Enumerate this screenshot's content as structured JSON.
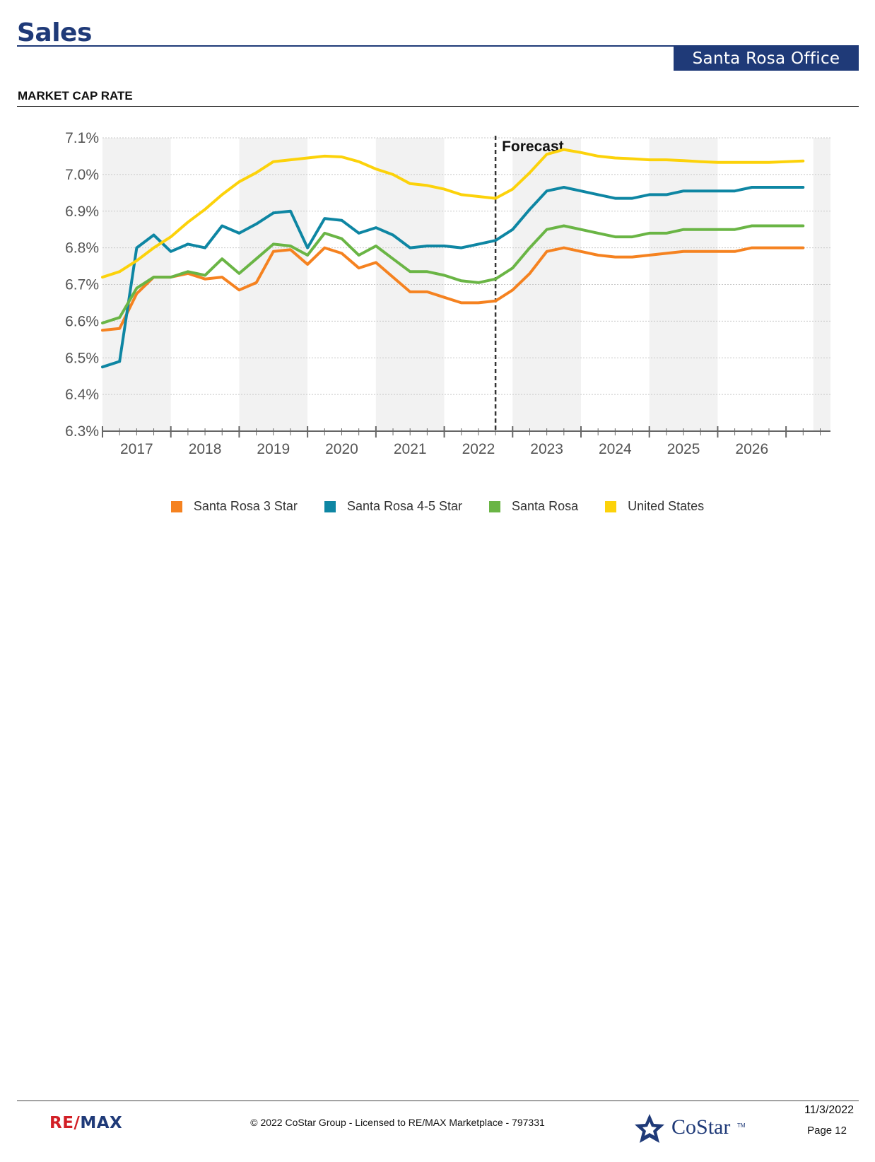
{
  "header": {
    "title": "Sales",
    "badge": "Santa Rosa Office"
  },
  "section": {
    "title": "MARKET CAP RATE"
  },
  "chart_data": {
    "type": "line",
    "title": "MARKET CAP RATE",
    "forecast_label": "Forecast",
    "forecast_start": 2022.25,
    "ylim": [
      6.3,
      7.1
    ],
    "xlim": [
      2016.5,
      2027.15
    ],
    "yticks": [
      6.3,
      6.4,
      6.5,
      6.6,
      6.7,
      6.8,
      6.9,
      7.0,
      7.1
    ],
    "ytick_labels": [
      "6.3%",
      "6.4%",
      "6.5%",
      "6.6%",
      "6.7%",
      "6.8%",
      "6.9%",
      "7.0%",
      "7.1%"
    ],
    "year_labels": [
      "2017",
      "2018",
      "2019",
      "2020",
      "2021",
      "2022",
      "2023",
      "2024",
      "2025",
      "2026"
    ],
    "x": [
      2016.5,
      2016.75,
      2017.0,
      2017.25,
      2017.5,
      2017.75,
      2018.0,
      2018.25,
      2018.5,
      2018.75,
      2019.0,
      2019.25,
      2019.5,
      2019.75,
      2020.0,
      2020.25,
      2020.5,
      2020.75,
      2021.0,
      2021.25,
      2021.5,
      2021.75,
      2022.0,
      2022.25,
      2022.5,
      2022.75,
      2023.0,
      2023.25,
      2023.5,
      2023.75,
      2024.0,
      2024.25,
      2024.5,
      2024.75,
      2025.0,
      2025.25,
      2025.5,
      2025.75,
      2026.0,
      2026.25,
      2026.5,
      2026.75
    ],
    "series": [
      {
        "name": "Santa Rosa 3 Star",
        "color": "#f58220",
        "values": [
          6.575,
          6.58,
          6.675,
          6.72,
          6.72,
          6.73,
          6.715,
          6.72,
          6.685,
          6.705,
          6.79,
          6.795,
          6.755,
          6.8,
          6.785,
          6.745,
          6.76,
          6.72,
          6.68,
          6.68,
          6.665,
          6.65,
          6.65,
          6.655,
          6.685,
          6.73,
          6.79,
          6.8,
          6.79,
          6.78,
          6.775,
          6.775,
          6.78,
          6.785,
          6.79,
          6.79,
          6.79,
          6.79,
          6.8,
          6.8,
          6.8,
          6.8
        ]
      },
      {
        "name": "Santa Rosa 4-5 Star",
        "color": "#0e86a3",
        "values": [
          6.475,
          6.49,
          6.8,
          6.835,
          6.79,
          6.81,
          6.8,
          6.86,
          6.84,
          6.865,
          6.895,
          6.9,
          6.8,
          6.88,
          6.875,
          6.84,
          6.855,
          6.835,
          6.8,
          6.805,
          6.805,
          6.8,
          6.81,
          6.82,
          6.85,
          6.905,
          6.955,
          6.965,
          6.955,
          6.945,
          6.935,
          6.935,
          6.945,
          6.945,
          6.955,
          6.955,
          6.955,
          6.955,
          6.965,
          6.965,
          6.965,
          6.965
        ]
      },
      {
        "name": "Santa Rosa",
        "color": "#6ab545",
        "values": [
          6.595,
          6.61,
          6.69,
          6.72,
          6.72,
          6.735,
          6.725,
          6.77,
          6.73,
          6.77,
          6.81,
          6.805,
          6.78,
          6.84,
          6.825,
          6.78,
          6.805,
          6.77,
          6.735,
          6.735,
          6.725,
          6.71,
          6.705,
          6.715,
          6.745,
          6.8,
          6.85,
          6.86,
          6.85,
          6.84,
          6.83,
          6.83,
          6.84,
          6.84,
          6.85,
          6.85,
          6.85,
          6.85,
          6.86,
          6.86,
          6.86,
          6.86
        ]
      },
      {
        "name": "United States",
        "color": "#fcd20a",
        "values": [
          6.72,
          6.735,
          6.765,
          6.8,
          6.83,
          6.87,
          6.905,
          6.945,
          6.98,
          7.005,
          7.035,
          7.04,
          7.045,
          7.05,
          7.048,
          7.035,
          7.015,
          7.0,
          6.975,
          6.97,
          6.96,
          6.945,
          6.94,
          6.935,
          6.96,
          7.005,
          7.055,
          7.068,
          7.06,
          7.05,
          7.045,
          7.043,
          7.04,
          7.04,
          7.038,
          7.035,
          7.033,
          7.033,
          7.033,
          7.033,
          7.035,
          7.037
        ]
      }
    ]
  },
  "legend": [
    {
      "label": "Santa Rosa 3 Star",
      "color": "#f58220"
    },
    {
      "label": "Santa Rosa 4-5 Star",
      "color": "#0e86a3"
    },
    {
      "label": "Santa Rosa",
      "color": "#6ab545"
    },
    {
      "label": "United States",
      "color": "#fcd20a"
    }
  ],
  "footer": {
    "brand_part1": "RE/",
    "brand_part2": "MAX",
    "copyright": "© 2022 CoStar Group - Licensed to RE/MAX Marketplace - 797331",
    "costar": "CoStar",
    "costar_tm": "TM",
    "date": "11/3/2022",
    "page": "Page 12"
  }
}
